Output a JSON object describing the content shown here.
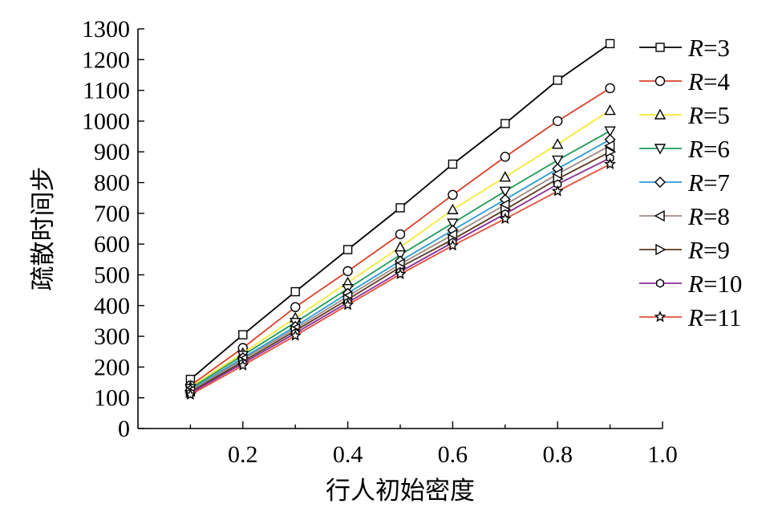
{
  "chart_data": {
    "type": "line",
    "xlabel": "行人初始密度",
    "ylabel": "疏散时间步",
    "xlim": [
      0,
      1.0
    ],
    "ylim": [
      0,
      1300
    ],
    "xticks": [
      "0.2",
      "0.4",
      "0.6",
      "0.8",
      "1.0"
    ],
    "yticks": [
      "0",
      "100",
      "200",
      "300",
      "400",
      "500",
      "600",
      "700",
      "800",
      "900",
      "1000",
      "1100",
      "1200",
      "1300"
    ],
    "grid": false,
    "legend_position": "right",
    "x": [
      0.1,
      0.2,
      0.3,
      0.4,
      0.5,
      0.6,
      0.7,
      0.8,
      0.9
    ],
    "series": [
      {
        "name": "R=3",
        "color": "#000000",
        "marker": "square",
        "values": [
          160,
          305,
          445,
          582,
          718,
          860,
          992,
          1133,
          1252
        ]
      },
      {
        "name": "R=4",
        "color": "#d9412b",
        "marker": "circle",
        "values": [
          140,
          262,
          395,
          512,
          632,
          760,
          884,
          1000,
          1107
        ]
      },
      {
        "name": "R=5",
        "color": "#f5e936",
        "marker": "triangle-up",
        "values": [
          135,
          245,
          360,
          475,
          590,
          712,
          818,
          925,
          1035
        ]
      },
      {
        "name": "R=6",
        "color": "#1f9a55",
        "marker": "triangle-down",
        "values": [
          130,
          238,
          345,
          455,
          565,
          668,
          772,
          873,
          968
        ]
      },
      {
        "name": "R=7",
        "color": "#2b9cd8",
        "marker": "diamond",
        "values": [
          125,
          230,
          332,
          440,
          545,
          645,
          745,
          845,
          940
        ]
      },
      {
        "name": "R=8",
        "color": "#a08a80",
        "marker": "triangle-left",
        "values": [
          122,
          225,
          325,
          430,
          535,
          630,
          728,
          828,
          920
        ]
      },
      {
        "name": "R=9",
        "color": "#5a3a1e",
        "marker": "triangle-right",
        "values": [
          118,
          218,
          318,
          420,
          525,
          615,
          712,
          812,
          900
        ]
      },
      {
        "name": "R=10",
        "color": "#8b2a9a",
        "marker": "hexagon",
        "values": [
          115,
          212,
          310,
          410,
          510,
          605,
          698,
          795,
          880
        ]
      },
      {
        "name": "R=11",
        "color": "#e0503a",
        "marker": "star",
        "values": [
          110,
          205,
          302,
          402,
          502,
          595,
          682,
          772,
          860
        ]
      }
    ]
  }
}
